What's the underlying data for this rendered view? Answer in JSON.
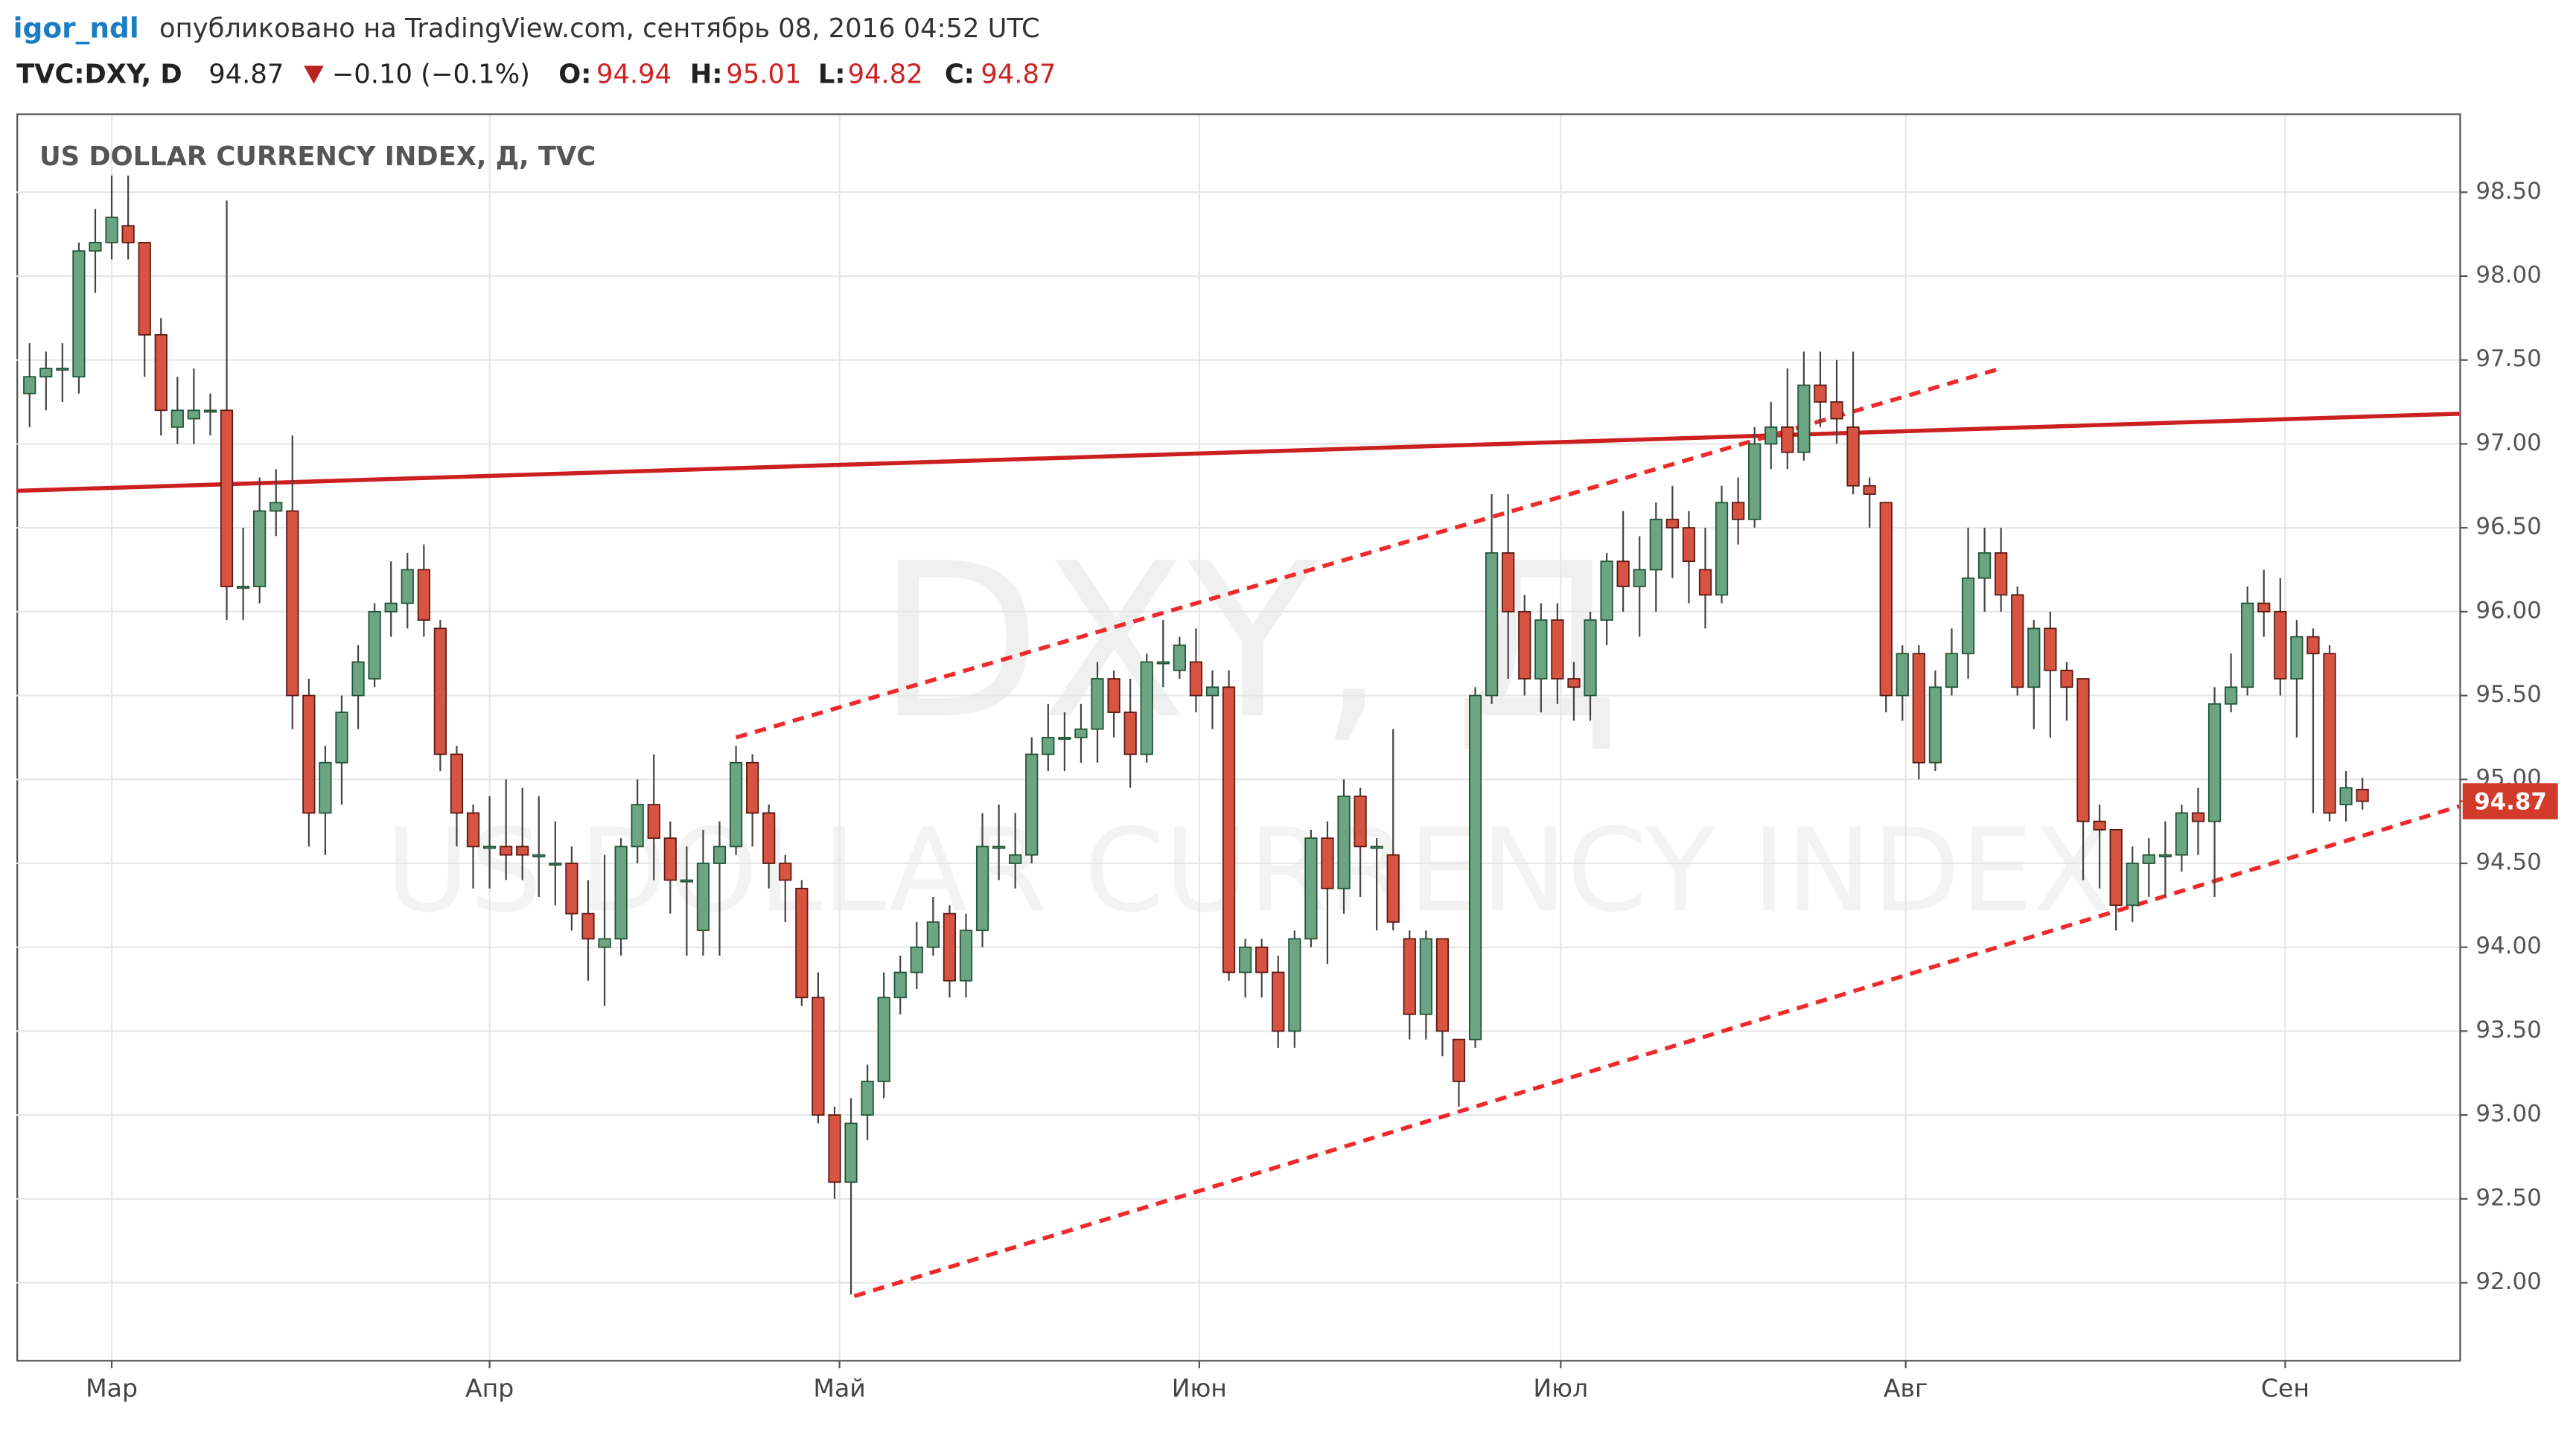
{
  "header": {
    "author": "igor_ndl",
    "published": "опубликовано на TradingView.com, сентябрь 08, 2016 04:52 UTC",
    "symbol": "TVC:DXY, D",
    "last": "94.87",
    "change": "−0.10 (−0.1%)",
    "open_label": "O:",
    "open": "94.94",
    "high_label": "H:",
    "high": "95.01",
    "low_label": "L:",
    "low": "94.82",
    "close_label": "C:",
    "close": "94.87"
  },
  "chart_data": {
    "type": "candlestick",
    "title": "US DOLLAR CURRENCY INDEX, Д, TVC",
    "watermark": "DXY, Д",
    "watermark_subtitle": "US DOLLAR CURRENCY INDEX",
    "up_color": "#6ba583",
    "down_color": "#d75442",
    "grid": true,
    "xlim": [
      -0.8,
      147.9
    ],
    "xticks": [
      {
        "value": 5,
        "label": "Мар"
      },
      {
        "value": 28,
        "label": "Апр"
      },
      {
        "value": 49.3,
        "label": "Май"
      },
      {
        "value": 71.2,
        "label": "Июн"
      },
      {
        "value": 93.2,
        "label": "Июл"
      },
      {
        "value": 114.2,
        "label": "Авг"
      },
      {
        "value": 137.3,
        "label": "Сен"
      }
    ],
    "ylim": [
      91.54,
      98.96
    ],
    "yticks": [
      {
        "value": 92,
        "label": "92.00"
      },
      {
        "value": 92.5,
        "label": "92.50"
      },
      {
        "value": 93,
        "label": "93.00"
      },
      {
        "value": 93.5,
        "label": "93.50"
      },
      {
        "value": 94,
        "label": "94.00"
      },
      {
        "value": 94.5,
        "label": "94.50"
      },
      {
        "value": 95,
        "label": "95.00"
      },
      {
        "value": 95.5,
        "label": "95.50"
      },
      {
        "value": 96,
        "label": "96.00"
      },
      {
        "value": 96.5,
        "label": "96.50"
      },
      {
        "value": 97,
        "label": "97.00"
      },
      {
        "value": 97.5,
        "label": "97.50"
      },
      {
        "value": 98,
        "label": "98.00"
      },
      {
        "value": 98.5,
        "label": "98.50"
      }
    ],
    "last_price": {
      "value": 94.87,
      "label": "94.87"
    },
    "open": [
      97.3,
      97.4,
      97.45,
      97.4,
      98.15,
      98.2,
      98.3,
      98.2,
      97.65,
      97.1,
      97.15,
      97.2,
      97.2,
      96.15,
      96.15,
      96.6,
      96.6,
      95.5,
      94.8,
      95.1,
      95.5,
      95.6,
      96.0,
      96.05,
      96.25,
      95.9,
      95.15,
      94.8,
      94.6,
      94.6,
      94.6,
      94.55,
      94.5,
      94.5,
      94.2,
      94.0,
      94.05,
      94.6,
      94.85,
      94.65,
      94.4,
      94.1,
      94.5,
      94.6,
      95.1,
      94.8,
      94.5,
      94.35,
      93.7,
      93.0,
      92.6,
      93.0,
      93.2,
      93.7,
      93.85,
      94.0,
      94.2,
      93.8,
      94.1,
      94.6,
      94.5,
      94.55,
      95.15,
      95.25,
      95.25,
      95.3,
      95.6,
      95.4,
      95.15,
      95.7,
      95.65,
      95.7,
      95.5,
      95.55,
      93.85,
      94.0,
      93.85,
      93.5,
      94.05,
      94.65,
      94.35,
      94.9,
      94.6,
      94.55,
      94.05,
      93.6,
      94.05,
      93.45,
      93.45,
      95.5,
      96.35,
      96.0,
      95.6,
      95.95,
      95.6,
      95.5,
      95.95,
      96.3,
      96.15,
      96.25,
      96.55,
      96.5,
      96.25,
      96.1,
      96.65,
      96.55,
      97.0,
      97.1,
      96.95,
      97.35,
      97.25,
      97.1,
      96.75,
      96.65,
      95.5,
      95.75,
      95.1,
      95.55,
      95.75,
      96.2,
      96.35,
      96.1,
      95.55,
      95.9,
      95.65,
      95.6,
      94.75,
      94.7,
      94.25,
      94.5,
      94.55,
      94.55,
      94.8,
      94.75,
      95.45,
      95.55,
      96.05,
      96.0,
      95.6,
      95.85,
      95.75,
      94.85,
      94.94
    ],
    "high": [
      97.6,
      97.55,
      97.6,
      98.2,
      98.4,
      98.6,
      98.6,
      98.2,
      97.75,
      97.4,
      97.45,
      97.3,
      98.45,
      96.5,
      96.8,
      96.85,
      97.05,
      95.6,
      95.2,
      95.5,
      95.8,
      96.05,
      96.3,
      96.35,
      96.4,
      95.95,
      95.2,
      94.85,
      94.9,
      95.0,
      94.95,
      94.9,
      94.75,
      94.6,
      94.4,
      94.55,
      94.65,
      95.0,
      95.15,
      94.75,
      94.6,
      94.7,
      94.75,
      95.2,
      95.15,
      94.85,
      94.55,
      94.4,
      93.85,
      93.05,
      93.1,
      93.3,
      93.85,
      93.95,
      94.15,
      94.3,
      94.25,
      94.2,
      94.8,
      94.85,
      94.8,
      95.25,
      95.45,
      95.4,
      95.45,
      95.7,
      95.65,
      95.6,
      95.75,
      95.95,
      95.85,
      95.9,
      95.65,
      95.65,
      94.05,
      94.05,
      93.95,
      94.1,
      94.7,
      94.75,
      95.0,
      94.95,
      94.65,
      95.3,
      94.1,
      94.1,
      94.05,
      93.45,
      95.55,
      96.7,
      96.7,
      96.1,
      96.05,
      96.05,
      95.7,
      96.0,
      96.35,
      96.6,
      96.45,
      96.65,
      96.75,
      96.6,
      96.5,
      96.75,
      96.8,
      97.1,
      97.25,
      97.45,
      97.55,
      97.55,
      97.5,
      97.55,
      96.8,
      96.65,
      95.8,
      95.8,
      95.65,
      95.9,
      96.5,
      96.5,
      96.5,
      96.15,
      95.95,
      96.0,
      95.7,
      95.6,
      94.85,
      94.7,
      94.6,
      94.65,
      94.75,
      94.85,
      94.95,
      95.55,
      95.75,
      96.15,
      96.25,
      96.2,
      95.95,
      95.9,
      95.8,
      95.05,
      95.01
    ],
    "low": [
      97.1,
      97.2,
      97.25,
      97.3,
      97.9,
      98.1,
      98.1,
      97.4,
      97.05,
      97.0,
      97.0,
      97.05,
      95.95,
      95.95,
      96.05,
      96.45,
      95.3,
      94.6,
      94.55,
      94.85,
      95.3,
      95.55,
      95.85,
      95.9,
      95.85,
      95.05,
      94.6,
      94.35,
      94.35,
      94.4,
      94.4,
      94.3,
      94.25,
      94.1,
      93.8,
      93.65,
      93.95,
      94.5,
      94.4,
      94.2,
      93.95,
      93.95,
      93.95,
      94.55,
      94.6,
      94.35,
      94.15,
      93.65,
      92.95,
      92.5,
      91.93,
      92.85,
      93.1,
      93.6,
      93.75,
      93.95,
      93.7,
      93.7,
      94.0,
      94.4,
      94.35,
      94.5,
      95.05,
      95.05,
      95.1,
      95.1,
      95.25,
      94.95,
      95.1,
      95.55,
      95.6,
      95.4,
      95.3,
      93.8,
      93.7,
      93.7,
      93.4,
      93.4,
      94.0,
      93.9,
      94.2,
      94.3,
      94.1,
      94.1,
      93.45,
      93.45,
      93.35,
      93.05,
      93.4,
      95.45,
      95.6,
      95.5,
      95.4,
      95.45,
      95.35,
      95.35,
      95.8,
      96.0,
      95.85,
      96.0,
      96.2,
      96.05,
      95.9,
      96.05,
      96.4,
      96.5,
      96.85,
      96.85,
      96.9,
      97.1,
      97.0,
      96.7,
      96.5,
      95.4,
      95.35,
      95.0,
      95.05,
      95.5,
      95.6,
      96.0,
      96.0,
      95.5,
      95.3,
      95.25,
      95.35,
      94.4,
      94.35,
      94.1,
      94.15,
      94.3,
      94.3,
      94.45,
      94.55,
      94.3,
      95.4,
      95.5,
      95.85,
      95.5,
      95.25,
      94.8,
      94.75,
      94.75,
      94.82
    ],
    "close": [
      97.4,
      97.45,
      97.45,
      98.15,
      98.2,
      98.35,
      98.2,
      97.65,
      97.2,
      97.2,
      97.2,
      97.2,
      96.15,
      96.15,
      96.6,
      96.65,
      95.5,
      94.8,
      95.1,
      95.4,
      95.7,
      96.0,
      96.05,
      96.25,
      95.95,
      95.15,
      94.8,
      94.6,
      94.6,
      94.55,
      94.55,
      94.55,
      94.5,
      94.2,
      94.05,
      94.05,
      94.6,
      94.85,
      94.65,
      94.4,
      94.4,
      94.5,
      94.6,
      95.1,
      94.8,
      94.5,
      94.4,
      93.7,
      93.0,
      92.6,
      92.95,
      93.2,
      93.7,
      93.85,
      94.0,
      94.15,
      93.8,
      94.1,
      94.6,
      94.6,
      94.55,
      95.15,
      95.25,
      95.25,
      95.3,
      95.6,
      95.4,
      95.15,
      95.7,
      95.7,
      95.8,
      95.5,
      95.55,
      93.85,
      94.0,
      93.85,
      93.5,
      94.05,
      94.65,
      94.35,
      94.9,
      94.6,
      94.6,
      94.15,
      93.6,
      94.05,
      93.5,
      93.2,
      95.5,
      96.35,
      96.0,
      95.6,
      95.95,
      95.6,
      95.55,
      95.95,
      96.3,
      96.15,
      96.25,
      96.55,
      96.5,
      96.3,
      96.1,
      96.65,
      96.55,
      97.0,
      97.1,
      96.95,
      97.35,
      97.25,
      97.15,
      96.75,
      96.7,
      95.5,
      95.75,
      95.1,
      95.55,
      95.75,
      96.2,
      96.35,
      96.1,
      95.55,
      95.9,
      95.65,
      95.55,
      94.75,
      94.7,
      94.25,
      94.5,
      94.55,
      94.55,
      94.8,
      94.75,
      95.45,
      95.55,
      96.05,
      96.0,
      95.6,
      95.85,
      95.75,
      94.8,
      94.95,
      94.87
    ],
    "trendlines": [
      {
        "color": "#cc1f1f",
        "style": "solid",
        "x": [
          -0.8,
          147.9
        ],
        "y": [
          96.72,
          97.18
        ]
      },
      {
        "color": "#ee2a2a",
        "style": "dashed",
        "x": [
          43,
          120
        ],
        "y": [
          95.25,
          97.45
        ]
      },
      {
        "color": "#ee2a2a",
        "style": "dashed",
        "x": [
          50.2,
          147.9
        ],
        "y": [
          91.92,
          94.84
        ]
      }
    ]
  }
}
